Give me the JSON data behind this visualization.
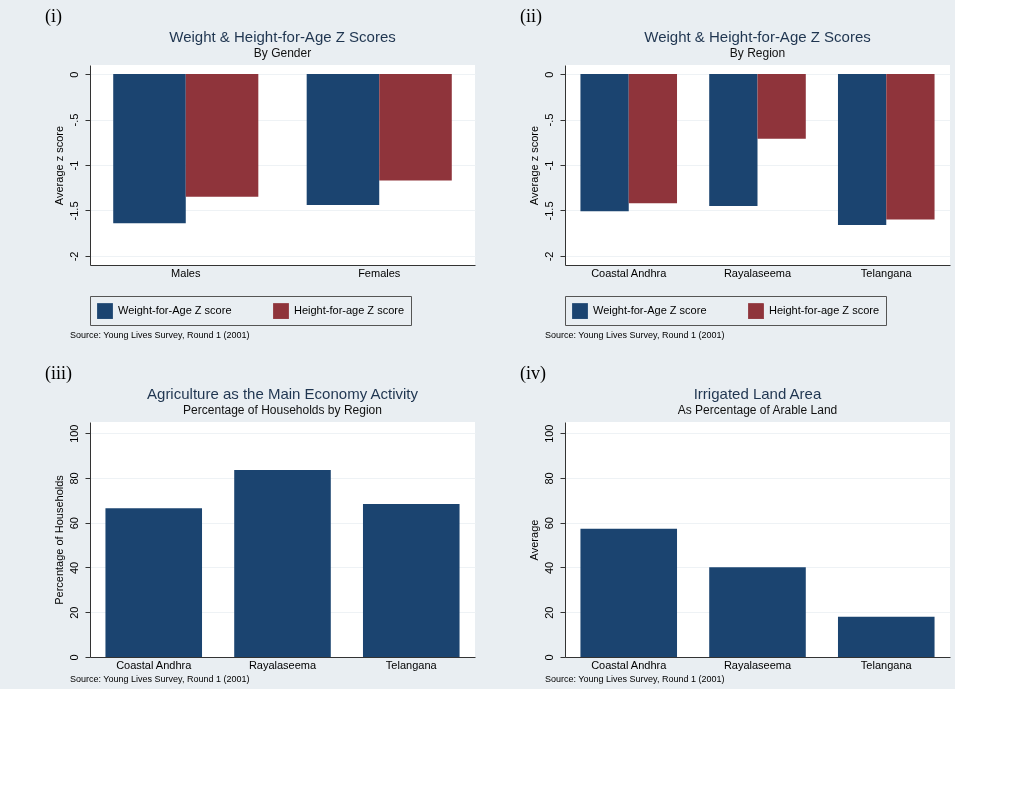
{
  "chart_data": [
    {
      "type": "bar",
      "title": "Weight & Height-for-Age Z Scores",
      "subtitle": "By Gender",
      "ylabel": "Average z score",
      "categories": [
        "Males",
        "Females"
      ],
      "series": [
        {
          "name": "Weight-for-Age Z score",
          "color": "#1b4470",
          "values": [
            -1.64,
            -1.44
          ]
        },
        {
          "name": "Height-for-age Z score",
          "color": "#8f343b",
          "values": [
            -1.35,
            -1.17
          ]
        }
      ],
      "ylim": [
        -2.1,
        0.1
      ],
      "yticks": [
        {
          "value": 0,
          "label": "0"
        },
        {
          "value": -0.5,
          "label": "-.5"
        },
        {
          "value": -1,
          "label": "-1"
        },
        {
          "value": -1.5,
          "label": "-1.5"
        },
        {
          "value": -2,
          "label": "-2"
        }
      ],
      "grid": "y",
      "legend": "bottom",
      "annotations": [
        "(i)",
        "Source: Young Lives Survey, Round 1 (2001)"
      ]
    },
    {
      "type": "bar",
      "title": "Weight & Height-for-Age Z Scores",
      "subtitle": "By Region",
      "ylabel": "Average z score",
      "categories": [
        "Coastal Andhra",
        "Rayalaseema",
        "Telangana"
      ],
      "series": [
        {
          "name": "Weight-for-Age Z score",
          "color": "#1b4470",
          "values": [
            -1.51,
            -1.45,
            -1.66
          ]
        },
        {
          "name": "Height-for-age Z score",
          "color": "#8f343b",
          "values": [
            -1.42,
            -0.71,
            -1.6
          ]
        }
      ],
      "ylim": [
        -2.1,
        0.1
      ],
      "yticks": [
        {
          "value": 0,
          "label": "0"
        },
        {
          "value": -0.5,
          "label": "-.5"
        },
        {
          "value": -1,
          "label": "-1"
        },
        {
          "value": -1.5,
          "label": "-1.5"
        },
        {
          "value": -2,
          "label": "-2"
        }
      ],
      "grid": "y",
      "legend": "bottom",
      "annotations": [
        "(ii)",
        "Source: Young Lives Survey, Round 1 (2001)"
      ]
    },
    {
      "type": "bar",
      "title": "Agriculture as the Main Economy Activity",
      "subtitle": "Percentage of Households by Region",
      "ylabel": "Percentage of Households",
      "categories": [
        "Coastal Andhra",
        "Rayalaseema",
        "Telangana"
      ],
      "series": [
        {
          "color": "#1b4470",
          "values": [
            66.5,
            83.6,
            68.4
          ]
        }
      ],
      "ylim": [
        0,
        105
      ],
      "yticks": [
        0,
        20,
        40,
        60,
        80,
        100
      ],
      "grid": "y",
      "annotations": [
        "(iii)",
        "Source: Young Lives Survey, Round 1 (2001)"
      ]
    },
    {
      "type": "bar",
      "title": "Irrigated Land Area",
      "subtitle": "As Percentage of Arable Land",
      "ylabel": "Average",
      "categories": [
        "Coastal Andhra",
        "Rayalaseema",
        "Telangana"
      ],
      "series": [
        {
          "color": "#1b4470",
          "values": [
            57.3,
            40.1,
            18.0
          ]
        }
      ],
      "ylim": [
        0,
        105
      ],
      "yticks": [
        0,
        20,
        40,
        60,
        80,
        100
      ],
      "grid": "y",
      "annotations": [
        "(iv)",
        "Source: Young Lives Survey, Round 1 (2001)"
      ]
    }
  ]
}
